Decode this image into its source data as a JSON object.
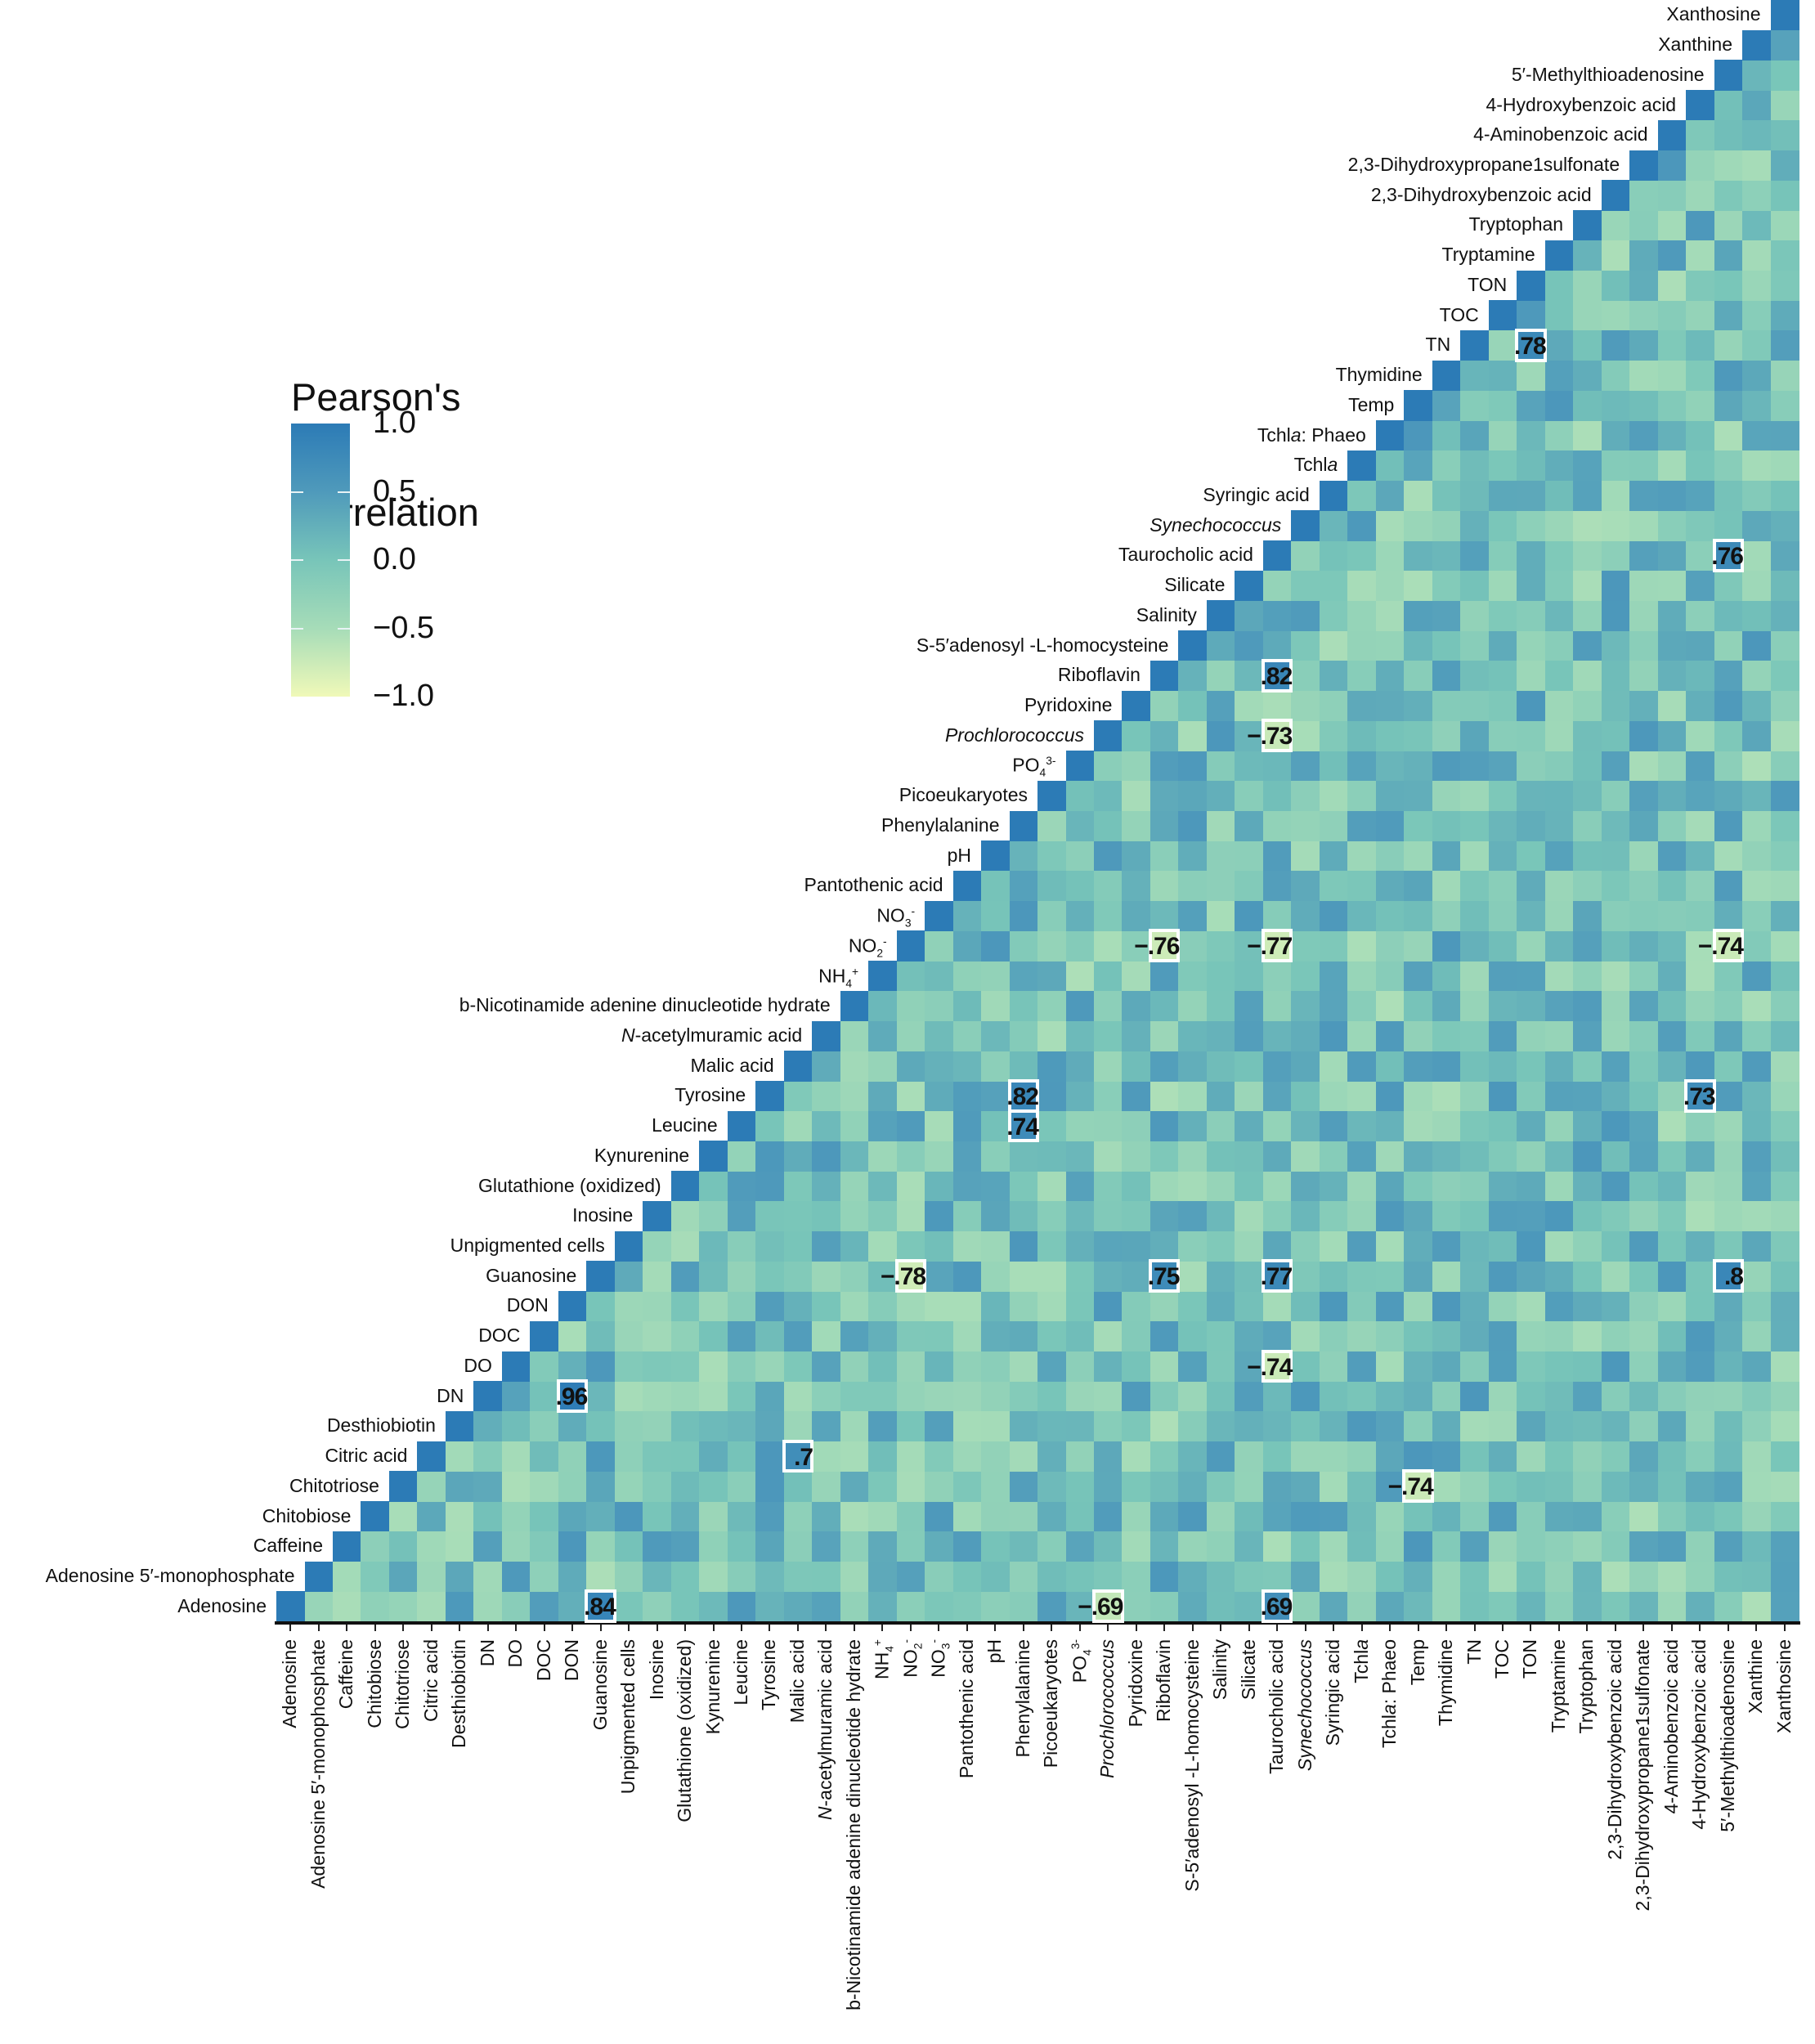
{
  "chart_data": {
    "type": "heatmap",
    "subtype": "lower-triangle correlation matrix",
    "title": "",
    "legend": {
      "title_line1": "Pearson's",
      "title_line2": "Correlation",
      "ticks": [
        "1.0",
        "0.5",
        "0.0",
        "−0.5",
        "−1.0"
      ],
      "range": [
        -1.0,
        1.0
      ],
      "colors": {
        "high": "#2c7bb6",
        "mid": "#78c5b9",
        "low": "#f0f9b8"
      },
      "position": "left"
    },
    "variables": [
      "Adenosine",
      "Adenosine 5′-monophosphate",
      "Caffeine",
      "Chitobiose",
      "Chitotriose",
      "Citric acid",
      "Desthiobiotin",
      "DN",
      "DO",
      "DOC",
      "DON",
      "Guanosine",
      "Unpigmented cells",
      "Inosine",
      "Glutathione (oxidized)",
      "Kynurenine",
      "Leucine",
      "Tyrosine",
      "Malic acid",
      "N-acetylmuramic acid",
      "b-Nicotinamide adenine dinucleotide hydrate",
      "NH4+",
      "NO2-",
      "NO3-",
      "Pantothenic acid",
      "pH",
      "Phenylalanine",
      "Picoeukaryotes",
      "PO43-",
      "Prochlorococcus",
      "Pyridoxine",
      "Riboflavin",
      "S-5′adenosyl -L-homocysteine",
      "Salinity",
      "Silicate",
      "Taurocholic acid",
      "Synechococcus",
      "Syringic acid",
      "Tchla",
      "Tchla: Phaeo",
      "Temp",
      "Thymidine",
      "TN",
      "TOC",
      "TON",
      "Tryptamine",
      "Tryptophan",
      "2,3-Dihydroxybenzoic acid",
      "2,3-Dihydroxypropane1sulfonate",
      "4-Aminobenzoic acid",
      "4-Hydroxybenzoic acid",
      "5′-Methylthioadenosine",
      "Xanthine",
      "Xanthosine"
    ],
    "diagonal_value": 1.0,
    "highlighted_correlations": [
      {
        "row": "TN",
        "col": "TON",
        "value": 0.78,
        "label": ".78"
      },
      {
        "row": "Taurocholic acid",
        "col": "5′-Methylthioadenosine",
        "value": 0.76,
        "label": ".76"
      },
      {
        "row": "Riboflavin",
        "col": "Taurocholic acid",
        "value": 0.82,
        "label": ".82"
      },
      {
        "row": "Prochlorococcus",
        "col": "Taurocholic acid",
        "value": -0.73,
        "label": "−.73"
      },
      {
        "row": "NO2-",
        "col": "Riboflavin",
        "value": -0.76,
        "label": "−.76"
      },
      {
        "row": "NO2-",
        "col": "Taurocholic acid",
        "value": -0.77,
        "label": "−.77"
      },
      {
        "row": "NO2-",
        "col": "5′-Methylthioadenosine",
        "value": -0.74,
        "label": "−.74"
      },
      {
        "row": "Tyrosine",
        "col": "Phenylalanine",
        "value": 0.82,
        "label": ".82"
      },
      {
        "row": "Tyrosine",
        "col": "4-Hydroxybenzoic acid",
        "value": 0.73,
        "label": ".73"
      },
      {
        "row": "Leucine",
        "col": "Phenylalanine",
        "value": 0.74,
        "label": ".74"
      },
      {
        "row": "Guanosine",
        "col": "NO2-",
        "value": -0.78,
        "label": "−.78"
      },
      {
        "row": "Guanosine",
        "col": "Riboflavin",
        "value": 0.75,
        "label": ".75"
      },
      {
        "row": "Guanosine",
        "col": "Taurocholic acid",
        "value": 0.77,
        "label": ".77"
      },
      {
        "row": "Guanosine",
        "col": "5′-Methylthioadenosine",
        "value": 0.8,
        "label": ".8"
      },
      {
        "row": "DO",
        "col": "Taurocholic acid",
        "value": -0.74,
        "label": "−.74"
      },
      {
        "row": "DN",
        "col": "DON",
        "value": 0.96,
        "label": ".96"
      },
      {
        "row": "Citric acid",
        "col": "Malic acid",
        "value": 0.7,
        "label": ".7"
      },
      {
        "row": "Chitotriose",
        "col": "Temp",
        "value": -0.74,
        "label": "−.74"
      },
      {
        "row": "Adenosine",
        "col": "Guanosine",
        "value": 0.84,
        "label": ".84"
      },
      {
        "row": "Adenosine",
        "col": "Prochlorococcus",
        "value": -0.69,
        "label": "−.69"
      },
      {
        "row": "Adenosine",
        "col": "Taurocholic acid",
        "value": 0.69,
        "label": ".69"
      }
    ],
    "xlabel": "",
    "ylabel": "",
    "grid": false
  },
  "axis_labels": {
    "html": [
      "Adenosine",
      "Adenosine 5′-monophosphate",
      "Caffeine",
      "Chitobiose",
      "Chitotriose",
      "Citric acid",
      "Desthiobiotin",
      "DN",
      "DO",
      "DOC",
      "DON",
      "Guanosine",
      "Unpigmented cells",
      "Inosine",
      "Glutathione (oxidized)",
      "Kynurenine",
      "Leucine",
      "Tyrosine",
      "Malic acid",
      "<i>N</i>-acetylmuramic acid",
      "b-Nicotinamide adenine dinucleotide hydrate",
      "NH<sub>4</sub><sup>+</sup>",
      "NO<sub>2</sub><sup>-</sup>",
      "NO<sub>3</sub><sup>-</sup>",
      "Pantothenic acid",
      "pH",
      "Phenylalanine",
      "Picoeukaryotes",
      "PO<sub>4</sub><sup>3-</sup>",
      "<i>Prochlorococcus</i>",
      "Pyridoxine",
      "Riboflavin",
      "S-5′adenosyl -L-homocysteine",
      "Salinity",
      "Silicate",
      "Taurocholic acid",
      "<i>Synechococcus</i>",
      "Syringic acid",
      "Tchl<i>a</i>",
      "Tchl<i>a</i>: Phaeo",
      "Temp",
      "Thymidine",
      "TN",
      "TOC",
      "TON",
      "Tryptamine",
      "Tryptophan",
      "2,3-Dihydroxybenzoic acid",
      "2,3-Dihydroxypropane1sulfonate",
      "4-Aminobenzoic acid",
      "4-Hydroxybenzoic acid",
      "5′-Methylthioadenosine",
      "Xanthine",
      "Xanthosine"
    ]
  }
}
